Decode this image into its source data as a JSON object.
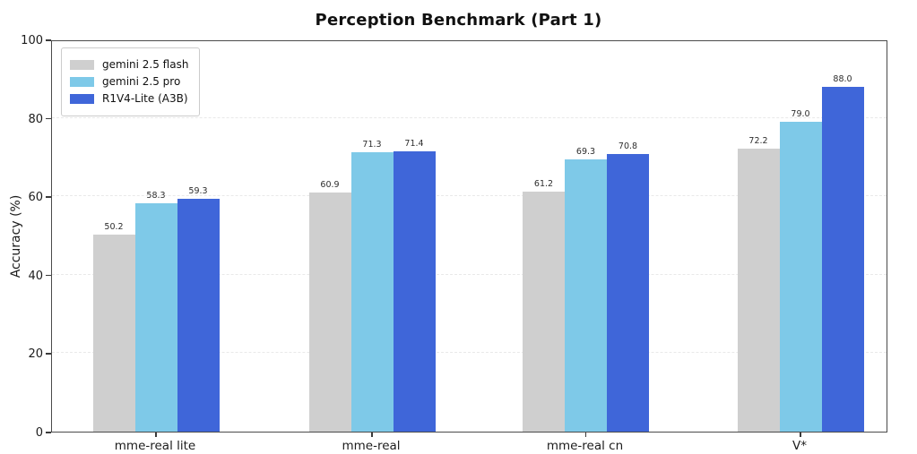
{
  "chart_data": {
    "type": "bar",
    "title": "Perception Benchmark (Part 1)",
    "xlabel": "",
    "ylabel": "Accuracy (%)",
    "categories": [
      "mme-real lite",
      "mme-real",
      "mme-real cn",
      "V*"
    ],
    "series": [
      {
        "name": "gemini 2.5 flash",
        "color": "#cfcfcf",
        "values": [
          50.2,
          60.9,
          61.2,
          72.2
        ]
      },
      {
        "name": "gemini 2.5 pro",
        "color": "#7ec9e8",
        "values": [
          58.3,
          71.3,
          69.3,
          79.0
        ]
      },
      {
        "name": "R1V4-Lite (A3B)",
        "color": "#3f66d9",
        "values": [
          59.3,
          71.4,
          70.8,
          88.0
        ]
      }
    ],
    "value_labels": [
      [
        "50.2",
        "58.3",
        "59.3"
      ],
      [
        "60.9",
        "71.3",
        "71.4"
      ],
      [
        "61.2",
        "69.3",
        "70.8"
      ],
      [
        "72.2",
        "79.0",
        "88.0"
      ]
    ],
    "ylim": [
      0,
      100
    ],
    "yticks": [
      0,
      20,
      40,
      60,
      80,
      100
    ],
    "grid": "dashed-horizontal",
    "legend_position": "upper-left"
  }
}
